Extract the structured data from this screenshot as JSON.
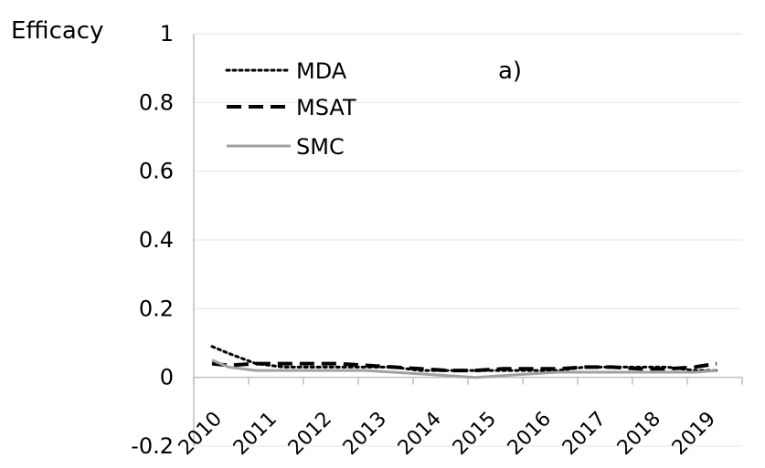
{
  "chart_data": {
    "type": "line",
    "title": "",
    "panel_label": "a)",
    "ylabel": "Efficacy",
    "xlabel": "",
    "ylim": [
      -0.2,
      1
    ],
    "yticks": [
      -0.2,
      0,
      0.2,
      0.4,
      0.6,
      0.8,
      1
    ],
    "ytick_labels": [
      "-0.2",
      "0",
      "0.2",
      "0.4",
      "0.6",
      "0.8",
      "1"
    ],
    "categories": [
      "2010",
      "2011",
      "2012",
      "2013",
      "2014",
      "2015",
      "2016",
      "2017",
      "2018",
      "2019"
    ],
    "grid": true,
    "legend_position": "top-left",
    "x": [
      2010.2,
      2010.5,
      2011.0,
      2011.5,
      2012.0,
      2012.5,
      2013.0,
      2013.5,
      2014.0,
      2014.5,
      2015.0,
      2015.5,
      2016.0,
      2016.5,
      2017.0,
      2017.5,
      2018.0,
      2018.5,
      2019.0,
      2019.4
    ],
    "series": [
      {
        "name": "MDA",
        "style": "dotted",
        "color": "#000000",
        "values": [
          0.09,
          0.07,
          0.04,
          0.03,
          0.03,
          0.03,
          0.03,
          0.03,
          0.02,
          0.02,
          0.02,
          0.02,
          0.02,
          0.02,
          0.03,
          0.03,
          0.03,
          0.03,
          0.02,
          0.02
        ]
      },
      {
        "name": "MSAT",
        "style": "dashed",
        "color": "#000000",
        "values": [
          0.04,
          0.035,
          0.04,
          0.04,
          0.04,
          0.04,
          0.035,
          0.03,
          0.025,
          0.02,
          0.02,
          0.025,
          0.025,
          0.025,
          0.03,
          0.03,
          0.025,
          0.025,
          0.03,
          0.04
        ]
      },
      {
        "name": "SMC",
        "style": "solid",
        "color": "#a0a0a0",
        "values": [
          0.05,
          0.03,
          0.02,
          0.02,
          0.02,
          0.02,
          0.02,
          0.015,
          0.01,
          0.005,
          0.0,
          0.005,
          0.01,
          0.015,
          0.015,
          0.015,
          0.015,
          0.015,
          0.015,
          0.02
        ]
      }
    ]
  }
}
